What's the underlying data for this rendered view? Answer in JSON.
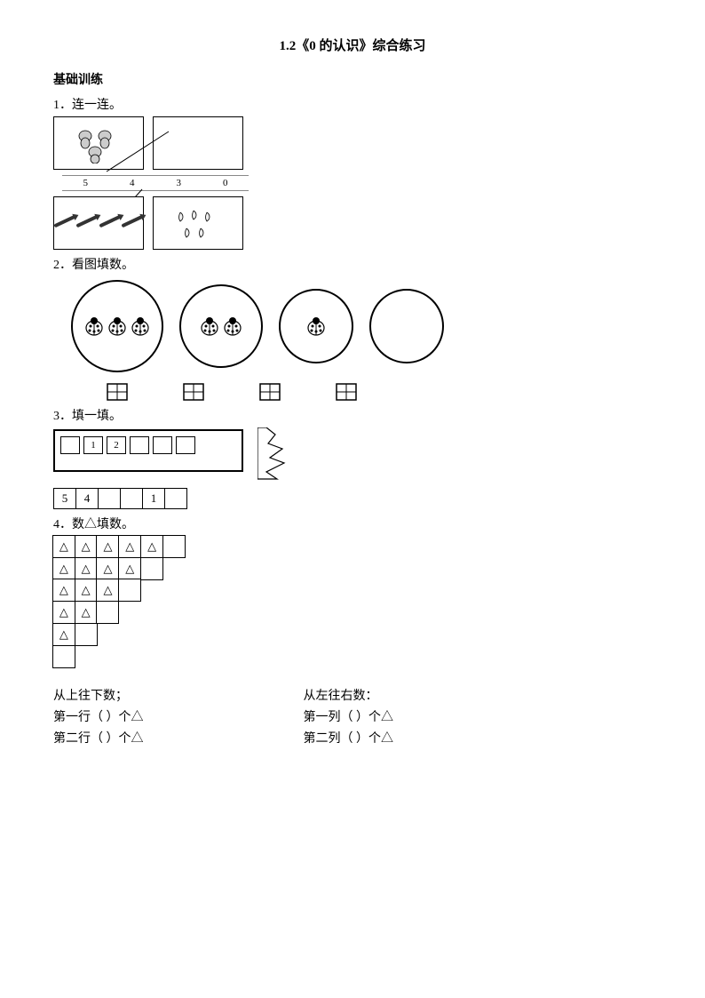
{
  "title": "1.2《0 的认识》综合练习",
  "section_basic": "基础训练",
  "q1": {
    "label": "1．连一连。",
    "numbers": [
      "5",
      "4",
      "3",
      "0"
    ],
    "top_boxes": [
      {
        "type": "dogs",
        "count": 3
      },
      {
        "type": "empty",
        "count": 0
      }
    ],
    "bottom_boxes": [
      {
        "type": "pens",
        "count": 4
      },
      {
        "type": "pears",
        "count": 5
      }
    ]
  },
  "q2": {
    "label": "2．看图填数。",
    "circles": [
      {
        "ladybugs": 3,
        "size": 100
      },
      {
        "ladybugs": 2,
        "size": 90
      },
      {
        "ladybugs": 1,
        "size": 80
      },
      {
        "ladybugs": 0,
        "size": 80
      }
    ]
  },
  "q3": {
    "label": "3．填一填。",
    "ruler_visible": [
      "",
      "1",
      "2",
      "",
      "",
      ""
    ],
    "row2": [
      "5",
      "4",
      "",
      "",
      "1",
      ""
    ]
  },
  "q4": {
    "label": "4．数△填数。",
    "rows": [
      {
        "tri": 5,
        "blank": 1
      },
      {
        "tri": 4,
        "blank": 1
      },
      {
        "tri": 3,
        "blank": 1
      },
      {
        "tri": 2,
        "blank": 1
      },
      {
        "tri": 1,
        "blank": 1
      },
      {
        "tri": 0,
        "blank": 1
      }
    ],
    "left_header": "从上往下数；",
    "right_header": "从左往右数：",
    "left_lines": [
      "第一行（   ）个△",
      "第二行（   ）个△"
    ],
    "right_lines": [
      "第一列（   ）个△",
      "第二列（   ）个△"
    ]
  },
  "colors": {
    "ink": "#000000",
    "bg": "#ffffff",
    "gray": "#888888"
  }
}
